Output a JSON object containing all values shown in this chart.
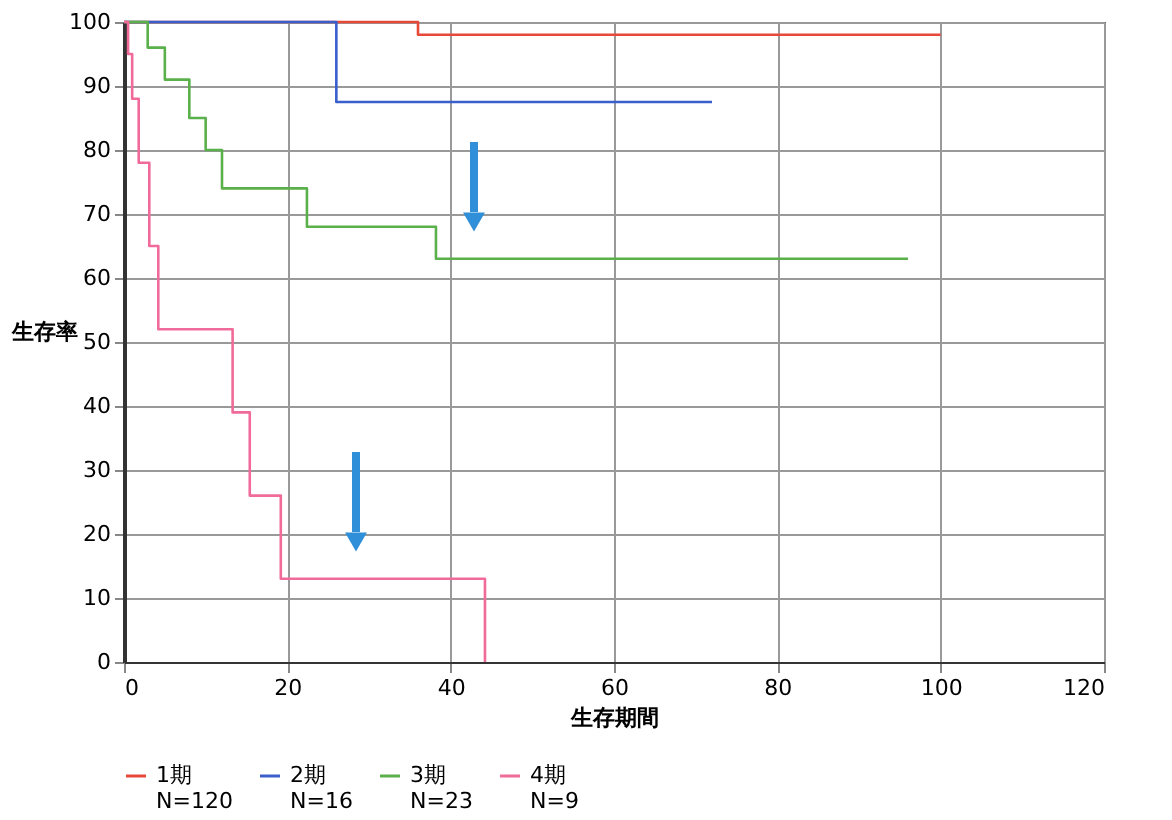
{
  "chart_data": {
    "type": "step",
    "xlabel": "生存期間",
    "ylabel": "生存率",
    "xlim": [
      0,
      120
    ],
    "xticks": [
      0,
      20,
      40,
      60,
      80,
      100,
      120
    ],
    "ylim": [
      0,
      100
    ],
    "yticks": [
      0,
      10,
      20,
      30,
      40,
      50,
      60,
      70,
      80,
      90,
      100
    ],
    "grid": true,
    "legend": "bottom",
    "line_style": "solid",
    "marker": "none",
    "series": [
      {
        "name": "1期\nN=120",
        "color": "#e8483a",
        "x": [
          0,
          36,
          100
        ],
        "values": [
          100,
          98,
          98
        ]
      },
      {
        "name": "2期\nN=16",
        "color": "#3a5fcd",
        "x": [
          0,
          26,
          72
        ],
        "values": [
          100,
          87.5,
          87.5
        ]
      },
      {
        "name": "3期\nN=23",
        "color": "#5ab04a",
        "x": [
          0,
          2.9,
          5,
          8,
          10,
          12,
          22.4,
          38.2,
          96
        ],
        "values": [
          100,
          96,
          91,
          85,
          80,
          74,
          68,
          63,
          63
        ]
      },
      {
        "name": "4期\nN=9",
        "color": "#f06a9a",
        "x": [
          0,
          0.5,
          1,
          1.8,
          3.1,
          4.2,
          13.3,
          15.4,
          19.2,
          44.2,
          44.2
        ],
        "values": [
          100,
          95,
          88,
          78,
          65,
          52,
          39,
          26,
          13,
          0,
          0
        ]
      }
    ]
  }
}
